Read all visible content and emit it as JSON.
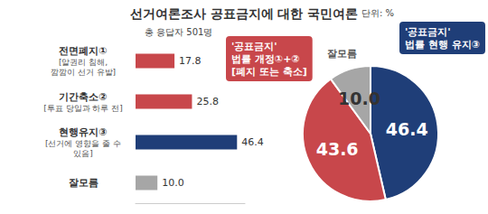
{
  "title": "선거여론조사 공표금지에 대한 국민여론",
  "annotations": [
    "단위: %",
    "총 응답자 501명"
  ],
  "chart_data": [
    {
      "type": "bar",
      "orientation": "horizontal",
      "categories": [
        "전면폐지①\n[알권리 침해,\n깜깜이 선거 유발]",
        "기간축소②\n[투표 당일과 하루 전]",
        "현행유지③\n[선거에 영향을 줄 수\n있음]",
        "잘모름"
      ],
      "values": [
        17.8,
        25.8,
        46.4,
        10.0
      ],
      "value_labels": [
        "17.8",
        "25.8",
        "46.4",
        "10.0"
      ],
      "colors": [
        "#c8474b",
        "#c8474b",
        "#1f3e78",
        "#a6a6a6"
      ],
      "xlim": [
        0,
        50
      ],
      "data_labels": true,
      "tick_labels": "y",
      "grid": false
    },
    {
      "type": "pie",
      "categories": [
        "'공표금지'\n법률 현행 유지③",
        "'공표금지'\n법률 개정①+②\n[폐지 또는 축소]",
        "잘모름"
      ],
      "values": [
        46.4,
        43.6,
        10.0
      ],
      "value_labels": [
        "46.4",
        "43.6",
        "10.0"
      ],
      "colors": [
        "#1f3e78",
        "#c8474b",
        "#a6a6a6"
      ],
      "data_labels": true
    }
  ]
}
